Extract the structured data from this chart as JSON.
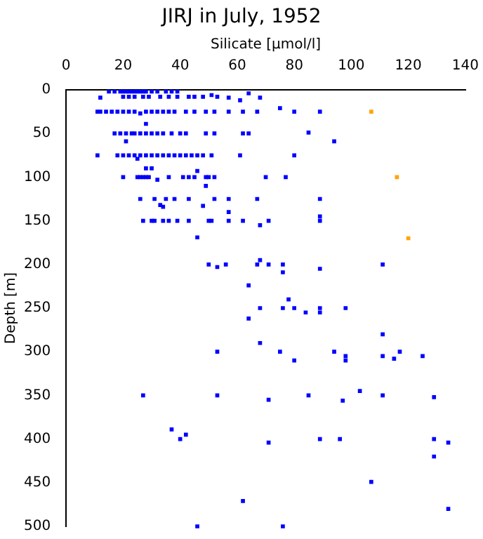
{
  "chart_data": {
    "type": "scatter",
    "title": "JIRJ in July, 1952",
    "xlabel": "Silicate [µmol/l]",
    "ylabel": "Depth [m]",
    "xlim": [
      0,
      140
    ],
    "xticks": [
      0,
      20,
      40,
      60,
      80,
      100,
      120,
      140
    ],
    "ylim": [
      500,
      0
    ],
    "yticks": [
      0,
      50,
      100,
      150,
      200,
      250,
      300,
      350,
      400,
      450,
      500
    ],
    "grid": false,
    "legend": false,
    "marker": "square",
    "series": [
      {
        "color": "#0000ff",
        "x": [
          15,
          17,
          19,
          20,
          21,
          22,
          23,
          24,
          25,
          26,
          27,
          28,
          30,
          32,
          35,
          37,
          39,
          12,
          20,
          22,
          24,
          27,
          29,
          33,
          36,
          39,
          43,
          45,
          48,
          51,
          53,
          57,
          61,
          64,
          68,
          11,
          12,
          14,
          16,
          18,
          20,
          22,
          24,
          26,
          28,
          30,
          32,
          34,
          36,
          38,
          42,
          45,
          49,
          52,
          57,
          62,
          67,
          75,
          80,
          89,
          28,
          17,
          19,
          21,
          23,
          24,
          26,
          28,
          30,
          32,
          34,
          37,
          40,
          42,
          49,
          52,
          62,
          64,
          85,
          94,
          21,
          11,
          18,
          20,
          22,
          24,
          26,
          28,
          30,
          32,
          34,
          36,
          38,
          40,
          42,
          44,
          46,
          48,
          51,
          61,
          80,
          25,
          28,
          30,
          20,
          25,
          26,
          27,
          28,
          29,
          32,
          36,
          41,
          43,
          45,
          49,
          50,
          52,
          70,
          77,
          46,
          49,
          26,
          31,
          33,
          35,
          38,
          43,
          52,
          57,
          67,
          89,
          48,
          34,
          57,
          89,
          27,
          30,
          31,
          34,
          36,
          39,
          43,
          50,
          51,
          57,
          62,
          68,
          71,
          89,
          46,
          50,
          53,
          56,
          67,
          68,
          71,
          76,
          76,
          89,
          111,
          64,
          78,
          68,
          76,
          80,
          84,
          89,
          89,
          98,
          64,
          111,
          68,
          53,
          75,
          94,
          98,
          98,
          111,
          117,
          115,
          125,
          80,
          27,
          53,
          71,
          85,
          97,
          103,
          111,
          129,
          37,
          40,
          42,
          71,
          89,
          96,
          129,
          129,
          134,
          107,
          62,
          134,
          46,
          76
        ],
        "values": [
          2,
          2,
          2,
          2,
          2,
          2,
          2,
          2,
          2,
          2,
          2,
          2,
          2,
          2,
          2,
          2,
          2,
          9,
          8,
          8,
          8,
          8,
          8,
          8,
          8,
          8,
          8,
          8,
          8,
          6,
          8,
          9,
          12,
          4,
          9,
          25,
          25,
          25,
          25,
          25,
          25,
          25,
          25,
          27,
          25,
          25,
          25,
          25,
          25,
          25,
          25,
          25,
          25,
          25,
          25,
          25,
          25,
          21,
          25,
          25,
          39,
          50,
          50,
          50,
          50,
          50,
          50,
          50,
          50,
          50,
          50,
          50,
          50,
          50,
          50,
          50,
          50,
          50,
          49,
          59,
          59,
          75,
          75,
          75,
          75,
          75,
          75,
          75,
          75,
          75,
          75,
          75,
          75,
          75,
          75,
          75,
          75,
          75,
          75,
          75,
          75,
          79,
          90,
          90,
          100,
          100,
          100,
          100,
          100,
          100,
          103,
          100,
          100,
          100,
          100,
          100,
          100,
          100,
          100,
          100,
          93,
          110,
          125,
          125,
          132,
          125,
          125,
          125,
          125,
          125,
          125,
          125,
          133,
          134,
          140,
          145,
          150,
          150,
          150,
          150,
          150,
          150,
          150,
          150,
          150,
          150,
          150,
          155,
          150,
          150,
          169,
          200,
          203,
          200,
          200,
          195,
          200,
          200,
          209,
          205,
          200,
          224,
          240,
          250,
          250,
          250,
          255,
          250,
          255,
          250,
          262,
          280,
          290,
          300,
          300,
          300,
          305,
          310,
          305,
          300,
          308,
          305,
          310,
          350,
          350,
          355,
          350,
          356,
          345,
          350,
          352,
          389,
          400,
          395,
          404,
          400,
          400,
          400,
          420,
          404,
          449,
          471,
          480,
          500,
          500
        ]
      },
      {
        "color": "#ffa500",
        "x": [
          107,
          116,
          120
        ],
        "values": [
          25,
          100,
          170
        ]
      }
    ]
  }
}
